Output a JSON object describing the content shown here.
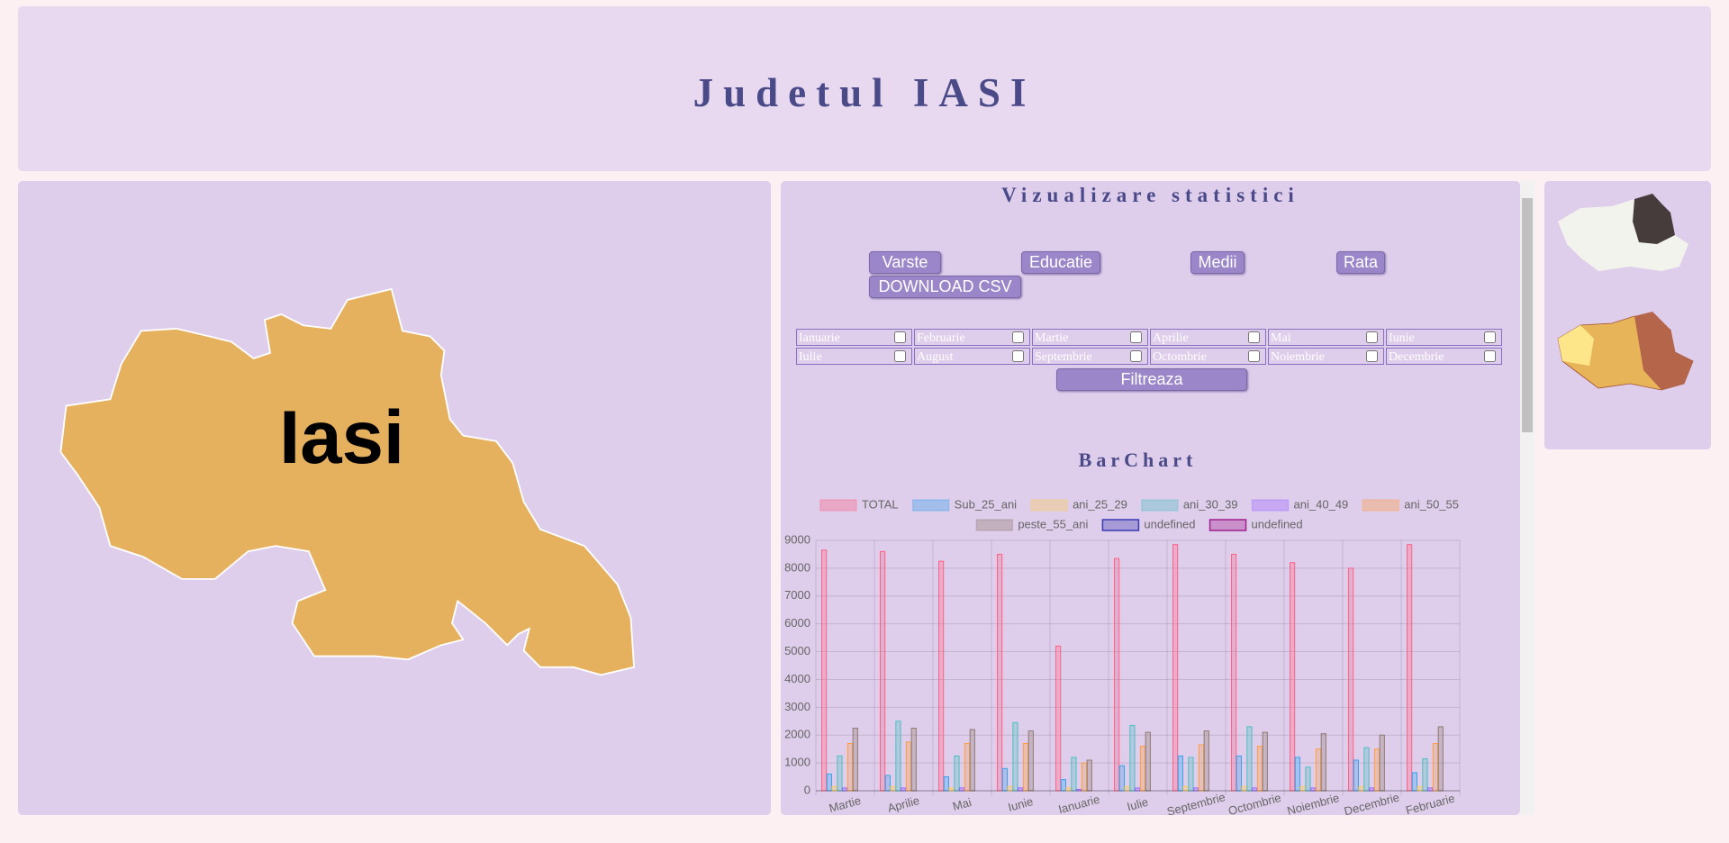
{
  "header": {
    "title": "Judetul IASI"
  },
  "map": {
    "label": "Iasi"
  },
  "panel": {
    "title": "Vizualizare statistici",
    "buttons": [
      "Varste",
      "Educatie",
      "Medii",
      "Rata",
      "DOWNLOAD CSV"
    ],
    "months": [
      "Ianuarie",
      "Februarie",
      "Martie",
      "Aprilie",
      "Mai",
      "Iunie",
      "Iulie",
      "August",
      "Septembrie",
      "Octombrie",
      "Noiembrie",
      "Decembrie"
    ],
    "filter_button": "Filtreaza"
  },
  "chart_data": {
    "type": "bar",
    "title": "BarChart",
    "categories": [
      "Martie",
      "Aprilie",
      "Mai",
      "Iunie",
      "Ianuarie",
      "Iulie",
      "Septembrie",
      "Octombrie",
      "Noiembrie",
      "Decembrie",
      "Februarie"
    ],
    "series": [
      {
        "name": "TOTAL",
        "color": "#ff6384",
        "values": [
          8650,
          8600,
          8250,
          8500,
          5200,
          8350,
          8850,
          8500,
          8200,
          8000,
          8850
        ]
      },
      {
        "name": "Sub_25_ani",
        "color": "#36a2eb",
        "values": [
          600,
          550,
          500,
          800,
          400,
          900,
          1250,
          1250,
          1200,
          1100,
          650
        ]
      },
      {
        "name": "ani_25_29",
        "color": "#ffcd56",
        "values": [
          150,
          150,
          100,
          150,
          100,
          150,
          150,
          150,
          150,
          150,
          150
        ]
      },
      {
        "name": "ani_30_39",
        "color": "#4bc0c0",
        "values": [
          1250,
          2500,
          1250,
          2450,
          1200,
          2350,
          1200,
          2300,
          850,
          1550,
          1150
        ]
      },
      {
        "name": "ani_40_49",
        "color": "#9966ff",
        "values": [
          100,
          100,
          100,
          100,
          50,
          100,
          100,
          100,
          100,
          100,
          100
        ]
      },
      {
        "name": "ani_50_55",
        "color": "#ff9f40",
        "values": [
          1700,
          1750,
          1700,
          1700,
          1000,
          1600,
          1650,
          1600,
          1500,
          1500,
          1700
        ]
      },
      {
        "name": "peste_55_ani",
        "color": "#8d7a6e",
        "values": [
          2250,
          2250,
          2200,
          2150,
          1100,
          2100,
          2150,
          2100,
          2050,
          2000,
          2300
        ]
      },
      {
        "name": "undefined",
        "color": "#3b3bb3",
        "values": [
          null,
          null,
          null,
          null,
          null,
          null,
          null,
          null,
          null,
          null,
          null
        ]
      },
      {
        "name": "undefined",
        "color": "#a0208f",
        "values": [
          null,
          null,
          null,
          null,
          null,
          null,
          null,
          null,
          null,
          null,
          null
        ]
      }
    ],
    "ylim": [
      0,
      9000
    ],
    "yticks": [
      0,
      1000,
      2000,
      3000,
      4000,
      5000,
      6000,
      7000,
      8000,
      9000
    ],
    "grid": true,
    "legend": "top"
  }
}
